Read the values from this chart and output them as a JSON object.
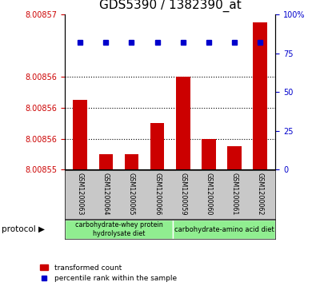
{
  "title": "GDS5390 / 1382390_at",
  "samples": [
    "GSM1200063",
    "GSM1200064",
    "GSM1200065",
    "GSM1200066",
    "GSM1200059",
    "GSM1200060",
    "GSM1200061",
    "GSM1200062"
  ],
  "red_values": [
    8.008559,
    8.008552,
    8.008552,
    8.008556,
    8.008562,
    8.008554,
    8.008553,
    8.008569
  ],
  "blue_values": [
    82,
    82,
    82,
    82,
    82,
    82,
    82,
    82
  ],
  "ylim_left": [
    8.00855,
    8.00857
  ],
  "ylim_right": [
    0,
    100
  ],
  "left_ticks": [
    8.00855,
    8.008554,
    8.008558,
    8.008562,
    8.00857
  ],
  "left_labels": [
    "8.00855",
    "8.00856",
    "8.00856",
    "8.00856",
    "8.00857"
  ],
  "grid_ticks": [
    8.008554,
    8.008558,
    8.008562
  ],
  "yticks_right": [
    0,
    25,
    50,
    75,
    100
  ],
  "bar_color": "#CC0000",
  "dot_color": "#0000CC",
  "label_bg": "#C8C8C8",
  "proto_color": "#90EE90",
  "title_fontsize": 11,
  "tick_color_left": "#CC0000",
  "tick_color_right": "#0000CC",
  "group1_label": "carbohydrate-whey protein\nhydrolysate diet",
  "group2_label": "carbohydrate-amino acid diet",
  "legend1": "transformed count",
  "legend2": "percentile rank within the sample",
  "protocol_text": "protocol ▶"
}
